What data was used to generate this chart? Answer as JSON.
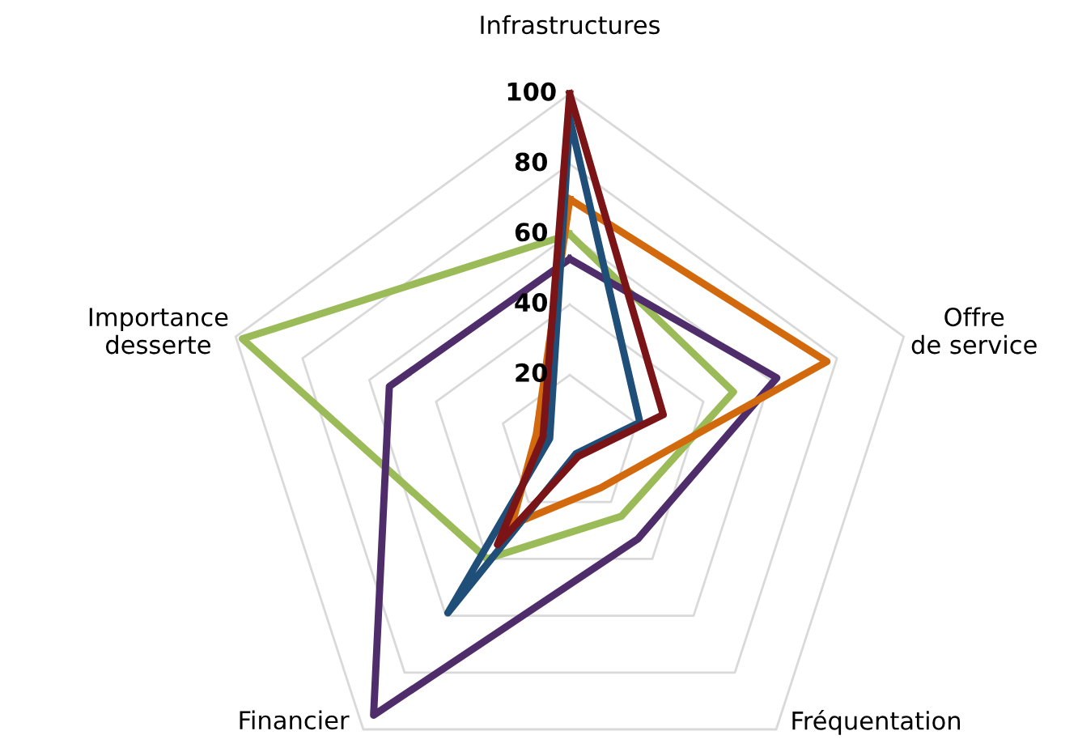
{
  "chart_data": {
    "type": "radar",
    "categories": [
      "Infrastructures",
      "Offre\nde service",
      "Fréquentation",
      "Financier",
      "Importance\ndesserte"
    ],
    "ylim": [
      0,
      100
    ],
    "yticks": [
      20,
      40,
      60,
      80,
      100
    ],
    "grid": true,
    "series": [
      {
        "color": "#9bbb59",
        "values": [
          60,
          49,
          25,
          40,
          98
        ]
      },
      {
        "color": "#4f2d6b",
        "values": [
          53,
          62,
          33,
          95,
          54
        ]
      },
      {
        "color": "#d26a0d",
        "values": [
          70,
          77,
          15,
          28,
          10
        ]
      },
      {
        "color": "#1f4e79",
        "values": [
          93,
          21,
          3,
          59,
          6
        ]
      },
      {
        "color": "#7b1416",
        "values": [
          100,
          28,
          4,
          35,
          8
        ]
      }
    ]
  }
}
